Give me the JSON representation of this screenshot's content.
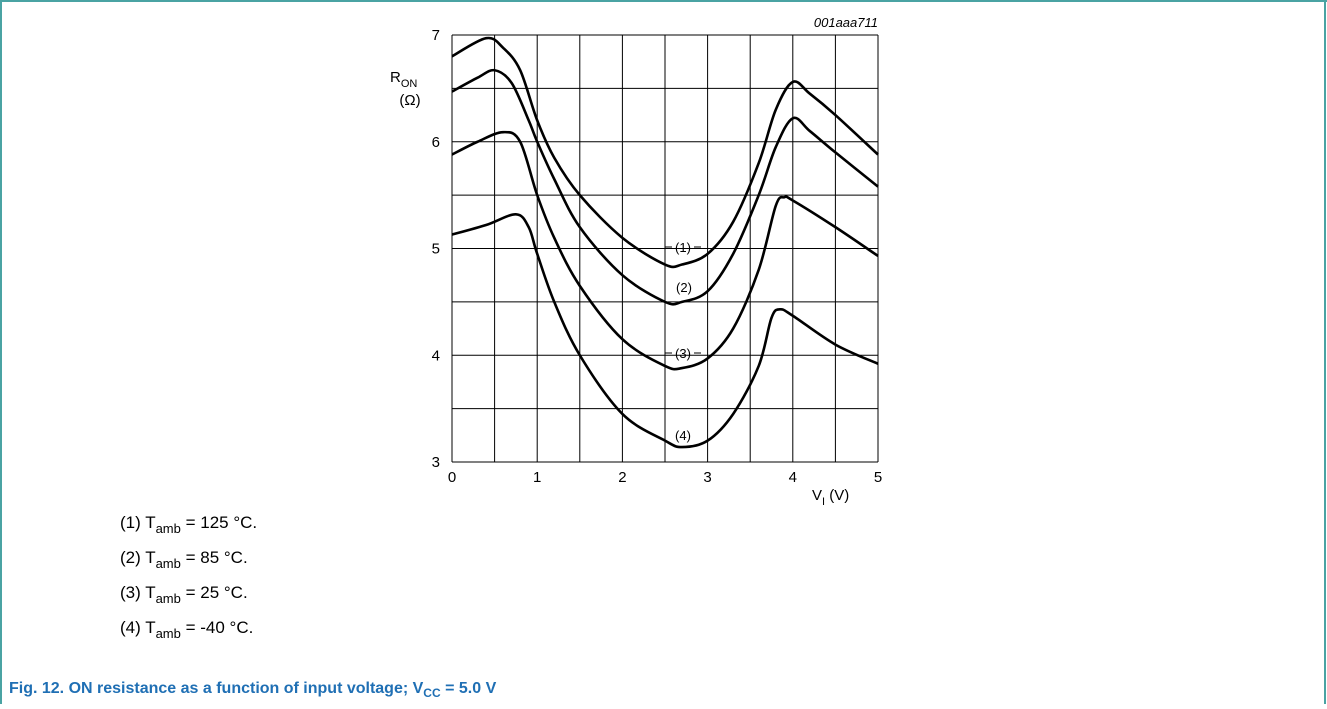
{
  "chart_data": {
    "type": "line",
    "code": "001aaa711",
    "ylabel": "R",
    "ylabel_sub": "ON",
    "ylabel_unit": "(Ω)",
    "xlabel": "V",
    "xlabel_sub": "I",
    "xlabel_unit": " (V)",
    "xlim": [
      0,
      5
    ],
    "xticks": [
      0,
      1,
      2,
      3,
      4,
      5
    ],
    "ylim": [
      3,
      7
    ],
    "yticks": [
      3,
      4,
      5,
      6,
      7
    ],
    "x_minor_ticks": [
      0.5,
      1.5,
      2.5,
      3.5,
      4.5
    ],
    "y_minor_ticks": [
      3.5,
      4.5,
      5.5,
      6.5
    ],
    "grid": true,
    "series": [
      {
        "name": "(1)",
        "color": "#000000",
        "x": [
          0,
          0.4,
          0.6,
          0.8,
          1.0,
          1.2,
          1.5,
          2.0,
          2.5,
          2.7,
          3.0,
          3.3,
          3.6,
          3.8,
          4.0,
          4.2,
          4.5,
          5.0
        ],
        "values": [
          6.8,
          6.97,
          6.88,
          6.67,
          6.2,
          5.85,
          5.5,
          5.1,
          4.85,
          4.85,
          4.95,
          5.25,
          5.8,
          6.3,
          6.56,
          6.45,
          6.25,
          5.88
        ]
      },
      {
        "name": "(2)",
        "color": "#000000",
        "x": [
          0,
          0.3,
          0.5,
          0.7,
          0.9,
          1.0,
          1.2,
          1.5,
          2.0,
          2.5,
          2.7,
          3.0,
          3.3,
          3.6,
          3.8,
          4.0,
          4.2,
          4.5,
          5.0
        ],
        "values": [
          6.47,
          6.6,
          6.67,
          6.55,
          6.2,
          6.0,
          5.65,
          5.2,
          4.75,
          4.5,
          4.5,
          4.6,
          4.95,
          5.5,
          5.95,
          6.22,
          6.1,
          5.9,
          5.58
        ]
      },
      {
        "name": "(3)",
        "color": "#000000",
        "x": [
          0,
          0.3,
          0.6,
          0.8,
          1.0,
          1.2,
          1.5,
          2.0,
          2.5,
          2.7,
          3.0,
          3.3,
          3.6,
          3.8,
          3.9,
          4.0,
          4.5,
          5.0
        ],
        "values": [
          5.88,
          6.0,
          6.09,
          6.0,
          5.5,
          5.1,
          4.65,
          4.15,
          3.9,
          3.88,
          3.97,
          4.25,
          4.8,
          5.4,
          5.48,
          5.45,
          5.2,
          4.93
        ]
      },
      {
        "name": "(4)",
        "color": "#000000",
        "x": [
          0,
          0.4,
          0.75,
          0.9,
          1.0,
          1.2,
          1.5,
          2.0,
          2.5,
          2.7,
          3.0,
          3.3,
          3.6,
          3.75,
          3.85,
          4.0,
          4.5,
          5.0
        ],
        "values": [
          5.13,
          5.22,
          5.32,
          5.2,
          4.95,
          4.5,
          4.0,
          3.45,
          3.2,
          3.14,
          3.2,
          3.45,
          3.9,
          4.35,
          4.43,
          4.37,
          4.1,
          3.92
        ]
      }
    ],
    "notes": [
      {
        "prefix": "(1) T",
        "sub": "amb",
        "suffix": " = 125 °C."
      },
      {
        "prefix": "(2) T",
        "sub": "amb",
        "suffix": " = 85 °C."
      },
      {
        "prefix": "(3) T",
        "sub": "amb",
        "suffix": " = 25 °C."
      },
      {
        "prefix": "(4) T",
        "sub": "amb",
        "suffix": " = -40 °C."
      }
    ],
    "caption": {
      "prefix": "Fig. 12.  ON resistance as a function of input voltage; V",
      "sub": "CC",
      "suffix": " = 5.0 V"
    }
  }
}
